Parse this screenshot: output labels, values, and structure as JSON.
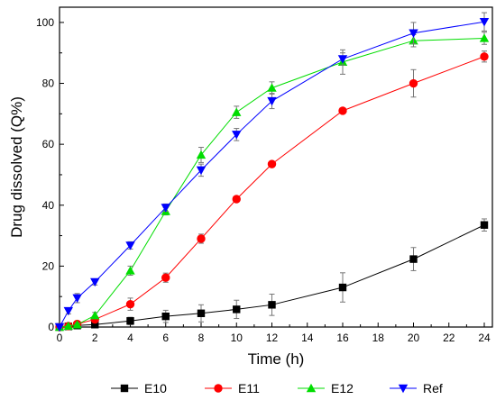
{
  "chart_data": {
    "type": "line",
    "title": "",
    "xlabel": "Time (h)",
    "ylabel": "Drug dissolved (Q%)",
    "xlim": [
      0,
      24
    ],
    "ylim": [
      0,
      105
    ],
    "x_ticks": [
      "0",
      "2",
      "4",
      "6",
      "8",
      "10",
      "12",
      "14",
      "16",
      "18",
      "20",
      "22",
      "24"
    ],
    "y_ticks": [
      "0",
      "20",
      "40",
      "60",
      "80",
      "100"
    ],
    "grid": false,
    "legend_position": "bottom",
    "x": [
      0,
      0.5,
      1,
      2,
      4,
      6,
      8,
      10,
      12,
      16,
      20,
      24
    ],
    "series": [
      {
        "name": "E10",
        "color": "#000000",
        "marker": "square",
        "values": [
          0,
          0.2,
          0.5,
          0.8,
          2.0,
          3.5,
          4.5,
          5.8,
          7.3,
          13.0,
          22.3,
          33.5
        ],
        "errors": [
          0.2,
          0.3,
          0.5,
          0.6,
          1.2,
          2.0,
          2.8,
          3.0,
          3.5,
          4.8,
          3.8,
          2.0
        ]
      },
      {
        "name": "E11",
        "color": "#ff0000",
        "marker": "circle",
        "values": [
          0,
          0.3,
          1.0,
          2.5,
          7.5,
          16.2,
          29.0,
          42.0,
          53.5,
          71.0,
          80.0,
          88.8
        ],
        "errors": [
          0.2,
          0.3,
          0.6,
          1.0,
          2.0,
          1.5,
          1.5,
          0.5,
          0.5,
          0.8,
          4.5,
          1.8
        ]
      },
      {
        "name": "E12",
        "color": "#00dd00",
        "marker": "triangle-up",
        "values": [
          0,
          0.3,
          0.8,
          3.8,
          18.5,
          38.0,
          56.5,
          70.5,
          78.5,
          87.0,
          94.0,
          94.8
        ],
        "errors": [
          0.2,
          0.3,
          0.5,
          1.0,
          1.5,
          1.2,
          2.5,
          2.0,
          2.0,
          4.0,
          2.0,
          2.0
        ]
      },
      {
        "name": "Ref",
        "color": "#0000ff",
        "marker": "triangle-down",
        "values": [
          0,
          5.3,
          9.5,
          14.8,
          26.8,
          39.2,
          51.5,
          63.2,
          74.2,
          88.0,
          96.5,
          100.2
        ],
        "errors": [
          0.3,
          1.0,
          1.5,
          1.0,
          1.2,
          1.2,
          2.0,
          2.0,
          2.5,
          2.0,
          3.5,
          3.0
        ]
      }
    ]
  }
}
